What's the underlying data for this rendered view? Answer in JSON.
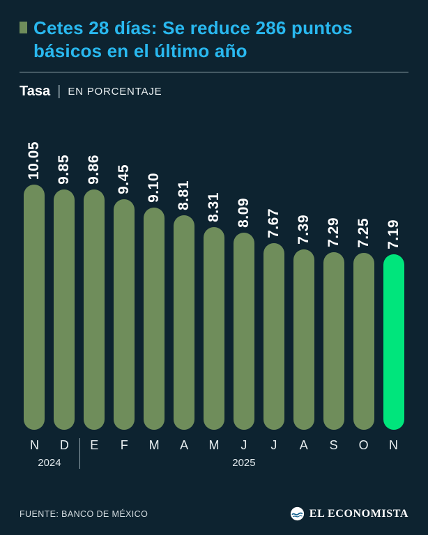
{
  "header": {
    "title": "Cetes 28 días: Se reduce 286 puntos básicos en el último año",
    "subtitle_label": "Tasa",
    "subtitle_separator": "|",
    "subtitle_detail": "EN PORCENTAJE"
  },
  "chart_data": {
    "type": "bar",
    "title": "Cetes 28 días: Se reduce 286 puntos básicos en el último año",
    "ylabel": "Tasa (EN PORCENTAJE)",
    "xlabel": "",
    "categories": [
      "N",
      "D",
      "E",
      "F",
      "M",
      "A",
      "M",
      "J",
      "J",
      "A",
      "S",
      "O",
      "N"
    ],
    "values": [
      10.05,
      9.85,
      9.86,
      9.45,
      9.1,
      8.81,
      8.31,
      8.09,
      7.67,
      7.39,
      7.29,
      7.25,
      7.19
    ],
    "value_labels": [
      "10.05",
      "9.85",
      "9.86",
      "9.45",
      "9.10",
      "8.81",
      "8.31",
      "8.09",
      "7.67",
      "7.39",
      "7.29",
      "7.25",
      "7.19"
    ],
    "year_groups": [
      {
        "label": "2024",
        "span": 2
      },
      {
        "label": "2025",
        "span": 11
      }
    ],
    "ylim": [
      0,
      10.5
    ],
    "grid": false,
    "legend": "none",
    "bar_color": "#6f8d5b",
    "highlight_color": "#00e57c",
    "highlight_index": 12
  },
  "footer": {
    "source": "FUENTE: BANCO DE MÉXICO",
    "brand": "EL ECONOMISTA"
  },
  "colors": {
    "background": "#0d2330",
    "title": "#29b8ef",
    "text": "#ffffff",
    "rule": "#93a5ad"
  }
}
